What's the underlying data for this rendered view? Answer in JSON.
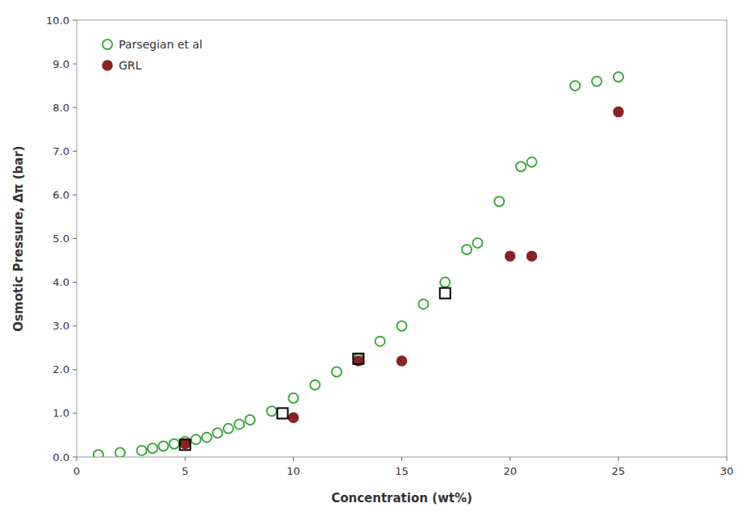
{
  "chart_data": {
    "type": "scatter",
    "xlabel": "Concentration (wt%)",
    "ylabel": "Osmotic Pressure, Δπ (bar)",
    "xlim": [
      0,
      30
    ],
    "ylim": [
      0.0,
      10.0
    ],
    "xticks": [
      0,
      5,
      10,
      15,
      20,
      25,
      30
    ],
    "yticks": [
      {
        "value": 0.0,
        "label": "0.0"
      },
      {
        "value": 1.0,
        "label": "1.0"
      },
      {
        "value": 2.0,
        "label": "2.0"
      },
      {
        "value": 3.0,
        "label": "3.0"
      },
      {
        "value": 4.0,
        "label": "4.0"
      },
      {
        "value": 5.0,
        "label": "5.0"
      },
      {
        "value": 6.0,
        "label": "6.0"
      },
      {
        "value": 7.0,
        "label": "7.0"
      },
      {
        "value": 8.0,
        "label": "8.0"
      },
      {
        "value": 9.0,
        "label": "9.0"
      },
      {
        "value": 10.0,
        "label": "10.0"
      }
    ],
    "grid": false,
    "legend": "upper left",
    "series": [
      {
        "name": "Parsegian et al",
        "color": "#3aaa3a",
        "marker": "open-circle",
        "x": [
          1.0,
          2.0,
          3.0,
          3.5,
          4.0,
          4.5,
          5.0,
          5.5,
          6.0,
          6.5,
          7.0,
          7.5,
          8.0,
          9.0,
          10.0,
          11.0,
          12.0,
          13.0,
          14.0,
          15.0,
          16.0,
          17.0,
          18.0,
          18.5,
          19.5,
          20.5,
          21.0,
          23.0,
          24.0,
          25.0
        ],
        "values": [
          0.05,
          0.1,
          0.15,
          0.2,
          0.25,
          0.3,
          0.35,
          0.4,
          0.45,
          0.55,
          0.65,
          0.75,
          0.85,
          1.05,
          1.35,
          1.65,
          1.95,
          2.25,
          2.65,
          3.0,
          3.5,
          4.0,
          4.75,
          4.9,
          5.85,
          6.65,
          6.75,
          8.5,
          8.6,
          8.7
        ]
      },
      {
        "name": "GRL",
        "color": "#8b2222",
        "marker": "circle",
        "x": [
          5.0,
          10.0,
          13.0,
          15.0,
          20.0,
          21.0,
          25.0
        ],
        "values": [
          0.3,
          0.9,
          2.2,
          2.2,
          4.6,
          4.6,
          7.9
        ]
      },
      {
        "color": "#000000",
        "marker": "open-square",
        "x": [
          5.0,
          9.5,
          13.0,
          17.0
        ],
        "values": [
          0.28,
          1.0,
          2.25,
          3.75
        ]
      }
    ]
  }
}
